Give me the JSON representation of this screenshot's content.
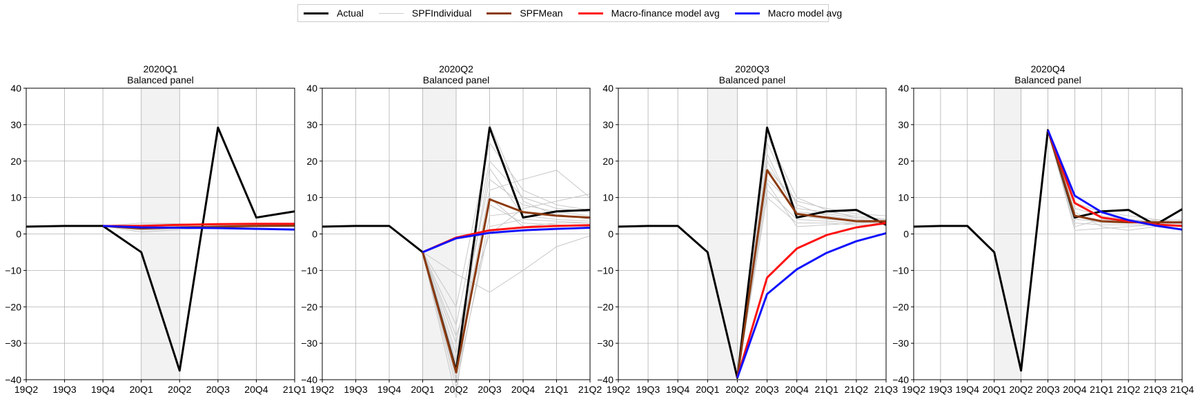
{
  "legend": {
    "items": [
      {
        "label": "Actual",
        "color": "#000000",
        "width": 3
      },
      {
        "label": "SPFIndividual",
        "color": "#cccccc",
        "width": 1
      },
      {
        "label": "SPFMean",
        "color": "#8b3a0f",
        "width": 3
      },
      {
        "label": "Macro-finance model avg",
        "color": "#ff1010",
        "width": 3
      },
      {
        "label": "Macro model avg",
        "color": "#1010ff",
        "width": 3
      }
    ]
  },
  "chart_data": [
    {
      "type": "line",
      "title": "2020Q1",
      "subtitle": "Balanced panel",
      "categories": [
        "19Q2",
        "19Q3",
        "19Q4",
        "20Q1",
        "20Q2",
        "20Q3",
        "20Q4",
        "21Q1"
      ],
      "ylim": [
        -40,
        40
      ],
      "yticks": [
        -40,
        -30,
        -20,
        -10,
        0,
        10,
        20,
        30,
        40
      ],
      "shaded_region": [
        "20Q1",
        "20Q2"
      ],
      "grid": true,
      "series": [
        {
          "name": "Actual",
          "x": [
            "19Q2",
            "19Q3",
            "19Q4",
            "20Q1",
            "20Q2",
            "20Q3",
            "20Q4",
            "21Q1"
          ],
          "values": [
            2.0,
            2.2,
            2.2,
            -5.0,
            -37.5,
            29.2,
            4.5,
            6.2
          ]
        },
        {
          "name": "SPFMean",
          "x": [
            "19Q4",
            "20Q1",
            "20Q2",
            "20Q3",
            "20Q4",
            "21Q1"
          ],
          "values": [
            2.2,
            1.5,
            1.8,
            2.0,
            2.2,
            2.3
          ]
        },
        {
          "name": "Macro-finance model avg",
          "x": [
            "19Q4",
            "20Q1",
            "20Q2",
            "20Q3",
            "20Q4",
            "21Q1"
          ],
          "values": [
            2.2,
            2.2,
            2.5,
            2.7,
            2.8,
            2.8
          ]
        },
        {
          "name": "Macro model avg",
          "x": [
            "19Q4",
            "20Q1",
            "20Q2",
            "20Q3",
            "20Q4",
            "21Q1"
          ],
          "values": [
            2.2,
            1.8,
            1.7,
            1.6,
            1.4,
            1.2
          ]
        }
      ],
      "individual": [
        [
          2.2,
          1.0,
          1.5,
          2.0,
          2.3,
          2.4
        ],
        [
          2.2,
          2.0,
          2.2,
          2.1,
          2.0,
          2.0
        ],
        [
          2.2,
          0.5,
          1.2,
          1.8,
          2.0,
          2.2
        ],
        [
          2.2,
          2.5,
          2.6,
          2.4,
          2.3,
          2.2
        ],
        [
          2.2,
          1.8,
          1.9,
          2.2,
          2.5,
          2.4
        ],
        [
          2.2,
          3.0,
          2.8,
          2.5,
          2.2,
          2.0
        ]
      ]
    },
    {
      "type": "line",
      "title": "2020Q2",
      "subtitle": "Balanced panel",
      "categories": [
        "19Q2",
        "19Q3",
        "19Q4",
        "20Q1",
        "20Q2",
        "20Q3",
        "20Q4",
        "21Q1",
        "21Q2"
      ],
      "ylim": [
        -40,
        40
      ],
      "yticks": [
        -40,
        -30,
        -20,
        -10,
        0,
        10,
        20,
        30,
        40
      ],
      "shaded_region": [
        "20Q1",
        "20Q2"
      ],
      "grid": true,
      "series": [
        {
          "name": "Actual",
          "x": [
            "19Q2",
            "19Q3",
            "19Q4",
            "20Q1",
            "20Q2",
            "20Q3",
            "20Q4",
            "21Q1",
            "21Q2"
          ],
          "values": [
            2.0,
            2.2,
            2.2,
            -5.0,
            -37.5,
            29.2,
            4.5,
            6.2,
            6.6
          ]
        },
        {
          "name": "SPFMean",
          "x": [
            "20Q1",
            "20Q2",
            "20Q3",
            "20Q4",
            "21Q1",
            "21Q2"
          ],
          "values": [
            -5.0,
            -38.0,
            9.5,
            6.0,
            5.0,
            4.5
          ]
        },
        {
          "name": "Macro-finance model avg",
          "x": [
            "20Q1",
            "20Q2",
            "20Q3",
            "20Q4",
            "21Q1",
            "21Q2"
          ],
          "values": [
            -5.0,
            -1.0,
            1.0,
            1.8,
            2.2,
            2.4
          ]
        },
        {
          "name": "Macro model avg",
          "x": [
            "20Q1",
            "20Q2",
            "20Q3",
            "20Q4",
            "21Q1",
            "21Q2"
          ],
          "values": [
            -5.0,
            -1.2,
            0.3,
            1.0,
            1.4,
            1.7
          ]
        }
      ],
      "individual": [
        [
          -5.0,
          -30.0,
          15.0,
          8.0,
          6.0,
          5.0
        ],
        [
          -5.0,
          -42.0,
          5.0,
          6.0,
          5.5,
          4.0
        ],
        [
          -5.0,
          -25.0,
          20.0,
          10.0,
          7.0,
          6.0
        ],
        [
          -5.0,
          -11.0,
          -16.0,
          -10.0,
          -3.5,
          -0.5
        ],
        [
          -5.0,
          -35.0,
          12.0,
          15.0,
          17.5,
          10.0
        ],
        [
          -5.0,
          -40.0,
          2.0,
          4.0,
          3.5,
          3.0
        ],
        [
          -5.0,
          -20.0,
          25.0,
          12.0,
          8.0,
          6.5
        ],
        [
          -5.0,
          -38.0,
          8.0,
          3.0,
          2.5,
          2.0
        ],
        [
          -5.0,
          -45.0,
          30.0,
          9.0,
          5.0,
          4.5
        ],
        [
          -5.0,
          -33.0,
          18.0,
          5.0,
          4.0,
          3.5
        ],
        [
          -5.0,
          -28.0,
          0.0,
          7.0,
          9.0,
          11.0
        ],
        [
          -5.0,
          -36.0,
          10.0,
          2.0,
          3.0,
          3.0
        ]
      ]
    },
    {
      "type": "line",
      "title": "2020Q3",
      "subtitle": "Balanced panel",
      "categories": [
        "19Q2",
        "19Q3",
        "19Q4",
        "20Q1",
        "20Q2",
        "20Q3",
        "20Q4",
        "21Q1",
        "21Q2",
        "21Q3"
      ],
      "ylim": [
        -40,
        40
      ],
      "yticks": [
        -40,
        -30,
        -20,
        -10,
        0,
        10,
        20,
        30,
        40
      ],
      "shaded_region": [
        "20Q1",
        "20Q2"
      ],
      "grid": true,
      "series": [
        {
          "name": "Actual",
          "x": [
            "19Q2",
            "19Q3",
            "19Q4",
            "20Q1",
            "20Q2",
            "20Q3",
            "20Q4",
            "21Q1",
            "21Q2",
            "21Q3"
          ],
          "values": [
            2.0,
            2.2,
            2.2,
            -5.0,
            -39.5,
            29.2,
            4.5,
            6.2,
            6.6,
            2.5
          ]
        },
        {
          "name": "SPFMean",
          "x": [
            "20Q2",
            "20Q3",
            "20Q4",
            "21Q1",
            "21Q2",
            "21Q3"
          ],
          "values": [
            -39.5,
            17.5,
            5.5,
            4.5,
            3.5,
            3.5
          ]
        },
        {
          "name": "Macro-finance model avg",
          "x": [
            "20Q2",
            "20Q3",
            "20Q4",
            "21Q1",
            "21Q2",
            "21Q3"
          ],
          "values": [
            -39.5,
            -12.0,
            -4.0,
            -0.3,
            1.8,
            3.0
          ]
        },
        {
          "name": "Macro model avg",
          "x": [
            "20Q2",
            "20Q3",
            "20Q4",
            "21Q1",
            "21Q2",
            "21Q3"
          ],
          "values": [
            -39.5,
            -16.5,
            -9.7,
            -5.2,
            -2.0,
            0.2
          ]
        }
      ],
      "individual": [
        [
          -39.5,
          25.0,
          8.0,
          5.0,
          4.0,
          3.5
        ],
        [
          -39.5,
          12.0,
          4.0,
          3.5,
          3.0,
          3.0
        ],
        [
          -39.5,
          20.0,
          6.0,
          5.5,
          4.5,
          4.0
        ],
        [
          -39.5,
          10.0,
          3.0,
          3.0,
          2.5,
          2.5
        ],
        [
          -39.5,
          15.0,
          7.0,
          6.0,
          5.0,
          4.0
        ],
        [
          -39.5,
          22.0,
          5.0,
          4.0,
          3.5,
          3.0
        ],
        [
          -39.5,
          18.0,
          9.0,
          7.0,
          5.5,
          5.0
        ],
        [
          -39.5,
          14.0,
          2.0,
          2.5,
          3.0,
          3.5
        ],
        [
          -39.5,
          27.0,
          10.0,
          6.5,
          4.5,
          4.0
        ]
      ]
    },
    {
      "type": "line",
      "title": "2020Q4",
      "subtitle": "Balanced panel",
      "categories": [
        "19Q2",
        "19Q3",
        "19Q4",
        "20Q1",
        "20Q2",
        "20Q3",
        "20Q4",
        "21Q1",
        "21Q2",
        "21Q3",
        "21Q4"
      ],
      "ylim": [
        -40,
        40
      ],
      "yticks": [
        -40,
        -30,
        -20,
        -10,
        0,
        10,
        20,
        30,
        40
      ],
      "shaded_region": [
        "20Q1",
        "20Q2"
      ],
      "grid": true,
      "series": [
        {
          "name": "Actual",
          "x": [
            "19Q2",
            "19Q3",
            "19Q4",
            "20Q1",
            "20Q2",
            "20Q3",
            "20Q4",
            "21Q1",
            "21Q2",
            "21Q3",
            "21Q4"
          ],
          "values": [
            2.0,
            2.2,
            2.2,
            -5.0,
            -37.5,
            28.5,
            4.5,
            6.2,
            6.6,
            2.5,
            6.8
          ]
        },
        {
          "name": "SPFMean",
          "x": [
            "20Q3",
            "20Q4",
            "21Q1",
            "21Q2",
            "21Q3",
            "21Q4"
          ],
          "values": [
            28.5,
            5.0,
            3.5,
            3.2,
            3.2,
            3.2
          ]
        },
        {
          "name": "Macro-finance model avg",
          "x": [
            "20Q3",
            "20Q4",
            "21Q1",
            "21Q2",
            "21Q3",
            "21Q4"
          ],
          "values": [
            28.5,
            8.5,
            4.5,
            3.5,
            2.6,
            2.2
          ]
        },
        {
          "name": "Macro model avg",
          "x": [
            "20Q3",
            "20Q4",
            "21Q1",
            "21Q2",
            "21Q3",
            "21Q4"
          ],
          "values": [
            28.5,
            10.5,
            6.0,
            3.8,
            2.3,
            1.2
          ]
        }
      ],
      "individual": [
        [
          28.5,
          3.0,
          2.5,
          2.5,
          2.5,
          2.5
        ],
        [
          28.5,
          7.0,
          5.0,
          4.0,
          3.5,
          3.0
        ],
        [
          28.5,
          1.0,
          1.5,
          2.0,
          2.5,
          2.0
        ],
        [
          28.5,
          5.0,
          3.0,
          3.0,
          3.0,
          3.5
        ],
        [
          28.5,
          8.5,
          6.0,
          5.0,
          4.0,
          3.0
        ],
        [
          28.5,
          2.0,
          4.0,
          3.5,
          3.0,
          2.8
        ],
        [
          28.5,
          6.0,
          2.0,
          1.0,
          2.0,
          2.5
        ],
        [
          28.5,
          4.0,
          3.5,
          3.5,
          3.8,
          3.8
        ]
      ]
    }
  ]
}
